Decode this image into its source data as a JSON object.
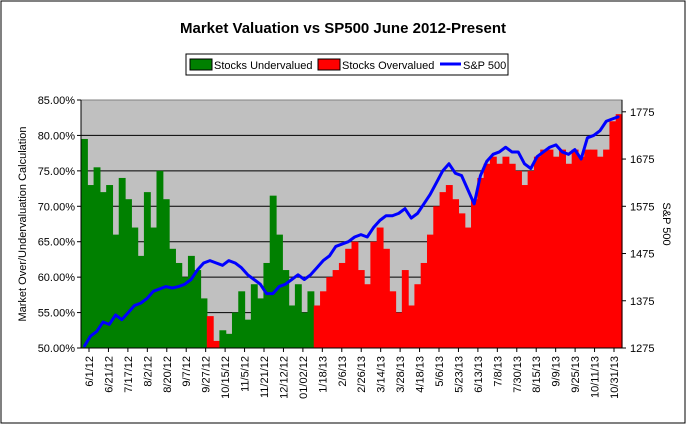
{
  "chart_data": {
    "type": "bar+line",
    "title": "Market Valuation vs SP500 June 2012-Present",
    "ylabel_left": "Market Over/Undervaluation Calculation",
    "ylabel_right": "S&P 500",
    "legend": {
      "placement": "top-center",
      "items": [
        {
          "label": "Stocks Undervalued",
          "color": "#008000",
          "kind": "box"
        },
        {
          "label": "Stocks Overvalued",
          "color": "#ff0000",
          "kind": "box"
        },
        {
          "label": "S&P 500",
          "color": "#0000ff",
          "kind": "line"
        }
      ]
    },
    "left_axis": {
      "min": 50,
      "max": 85,
      "ticks": [
        "50.00%",
        "55.00%",
        "60.00%",
        "65.00%",
        "70.00%",
        "75.00%",
        "80.00%",
        "85.00%"
      ]
    },
    "right_axis": {
      "min": 1275,
      "max": 1800,
      "ticks": [
        "1275",
        "1375",
        "1475",
        "1575",
        "1675",
        "1775"
      ]
    },
    "x_tick_labels": [
      "6/1/12",
      "6/21/12",
      "7/17/12",
      "8/2/12",
      "8/20/12",
      "9/7/12",
      "9/27/12",
      "10/15/12",
      "11/5/12",
      "11/21/12",
      "12/12/12",
      "01/02/12",
      "1/18/13",
      "2/6/13",
      "2/26/13",
      "3/14/13",
      "3/28/13",
      "4/18/13",
      "5/6/13",
      "5/23/13",
      "6/13/13",
      "7/8/13",
      "7/30/13",
      "8/15/13",
      "9/9/13",
      "9/25/13",
      "10/11/13",
      "10/31/13"
    ],
    "plot_background": "#c0c0c0",
    "undervalued_color": "#008000",
    "overvalued_color": "#ff0000",
    "sp500_color": "#0000ff",
    "bars": [
      {
        "segment": 0,
        "status": "undervalued",
        "value": 79.5
      },
      {
        "segment": 0.5,
        "status": "undervalued",
        "value": 73
      },
      {
        "segment": 1,
        "status": "undervalued",
        "value": 75.5
      },
      {
        "segment": 1.5,
        "status": "undervalued",
        "value": 72
      },
      {
        "segment": 2,
        "status": "undervalued",
        "value": 73
      },
      {
        "segment": 2.5,
        "status": "undervalued",
        "value": 66
      },
      {
        "segment": 3,
        "status": "undervalued",
        "value": 74
      },
      {
        "segment": 3.5,
        "status": "undervalued",
        "value": 71
      },
      {
        "segment": 4,
        "status": "undervalued",
        "value": 67
      },
      {
        "segment": 4.5,
        "status": "undervalued",
        "value": 63
      },
      {
        "segment": 5,
        "status": "undervalued",
        "value": 72
      },
      {
        "segment": 5.5,
        "status": "undervalued",
        "value": 67
      },
      {
        "segment": 6,
        "status": "undervalued",
        "value": 75
      },
      {
        "segment": 6.5,
        "status": "undervalued",
        "value": 71
      },
      {
        "segment": 7,
        "status": "undervalued",
        "value": 64
      },
      {
        "segment": 7.5,
        "status": "undervalued",
        "value": 62
      },
      {
        "segment": 8,
        "status": "undervalued",
        "value": 60
      },
      {
        "segment": 8.5,
        "status": "undervalued",
        "value": 63
      },
      {
        "segment": 9,
        "status": "undervalued",
        "value": 61
      },
      {
        "segment": 9.5,
        "status": "undervalued",
        "value": 57
      },
      {
        "segment": 10,
        "status": "overvalued",
        "value": 54.5
      },
      {
        "segment": 10.5,
        "status": "overvalued",
        "value": 51
      },
      {
        "segment": 11,
        "status": "undervalued",
        "value": 52.5
      },
      {
        "segment": 11.5,
        "status": "undervalued",
        "value": 52
      },
      {
        "segment": 12,
        "status": "undervalued",
        "value": 55
      },
      {
        "segment": 12.5,
        "status": "undervalued",
        "value": 58
      },
      {
        "segment": 13,
        "status": "undervalued",
        "value": 54
      },
      {
        "segment": 13.5,
        "status": "undervalued",
        "value": 59
      },
      {
        "segment": 14,
        "status": "undervalued",
        "value": 57
      },
      {
        "segment": 14.5,
        "status": "undervalued",
        "value": 62
      },
      {
        "segment": 15,
        "status": "undervalued",
        "value": 71.5
      },
      {
        "segment": 15.5,
        "status": "undervalued",
        "value": 66
      },
      {
        "segment": 16,
        "status": "undervalued",
        "value": 61
      },
      {
        "segment": 16.5,
        "status": "undervalued",
        "value": 56
      },
      {
        "segment": 17,
        "status": "undervalued",
        "value": 59
      },
      {
        "segment": 17.5,
        "status": "undervalued",
        "value": 55
      },
      {
        "segment": 18,
        "status": "undervalued",
        "value": 58
      },
      {
        "segment": 18.5,
        "status": "overvalued",
        "value": 56
      },
      {
        "segment": 19,
        "status": "overvalued",
        "value": 58
      },
      {
        "segment": 19.5,
        "status": "overvalued",
        "value": 60
      },
      {
        "segment": 20,
        "status": "overvalued",
        "value": 61
      },
      {
        "segment": 20.5,
        "status": "overvalued",
        "value": 62
      },
      {
        "segment": 21,
        "status": "overvalued",
        "value": 64
      },
      {
        "segment": 21.5,
        "status": "overvalued",
        "value": 65
      },
      {
        "segment": 22,
        "status": "overvalued",
        "value": 61
      },
      {
        "segment": 22.5,
        "status": "overvalued",
        "value": 59
      },
      {
        "segment": 23,
        "status": "overvalued",
        "value": 65
      },
      {
        "segment": 23.5,
        "status": "overvalued",
        "value": 67
      },
      {
        "segment": 24,
        "status": "overvalued",
        "value": 64
      },
      {
        "segment": 24.5,
        "status": "overvalued",
        "value": 58
      },
      {
        "segment": 25,
        "status": "overvalued",
        "value": 55
      },
      {
        "segment": 25.5,
        "status": "overvalued",
        "value": 61
      },
      {
        "segment": 26,
        "status": "overvalued",
        "value": 56
      },
      {
        "segment": 26.5,
        "status": "overvalued",
        "value": 59
      },
      {
        "segment": 27,
        "status": "overvalued",
        "value": 62
      },
      {
        "segment": 27.5,
        "status": "overvalued",
        "value": 66
      },
      {
        "segment": 28,
        "status": "overvalued",
        "value": 70
      },
      {
        "segment": 28.5,
        "status": "overvalued",
        "value": 72
      },
      {
        "segment": 29,
        "status": "overvalued",
        "value": 73
      },
      {
        "segment": 29.5,
        "status": "overvalued",
        "value": 71
      },
      {
        "segment": 30,
        "status": "overvalued",
        "value": 69
      },
      {
        "segment": 30.5,
        "status": "overvalued",
        "value": 67
      },
      {
        "segment": 31,
        "status": "overvalued",
        "value": 71
      },
      {
        "segment": 31.5,
        "status": "overvalued",
        "value": 74
      },
      {
        "segment": 32,
        "status": "overvalued",
        "value": 76
      },
      {
        "segment": 32.5,
        "status": "overvalued",
        "value": 77
      },
      {
        "segment": 33,
        "status": "overvalued",
        "value": 76
      },
      {
        "segment": 33.5,
        "status": "overvalued",
        "value": 77
      },
      {
        "segment": 34,
        "status": "overvalued",
        "value": 76
      },
      {
        "segment": 34.5,
        "status": "overvalued",
        "value": 75
      },
      {
        "segment": 35,
        "status": "overvalued",
        "value": 73
      },
      {
        "segment": 35.5,
        "status": "overvalued",
        "value": 75
      },
      {
        "segment": 36,
        "status": "overvalued",
        "value": 77
      },
      {
        "segment": 36.5,
        "status": "overvalued",
        "value": 78
      },
      {
        "segment": 37,
        "status": "overvalued",
        "value": 78
      },
      {
        "segment": 37.5,
        "status": "overvalued",
        "value": 77
      },
      {
        "segment": 38,
        "status": "overvalued",
        "value": 78
      },
      {
        "segment": 38.5,
        "status": "overvalued",
        "value": 76
      },
      {
        "segment": 39,
        "status": "overvalued",
        "value": 78
      },
      {
        "segment": 39.5,
        "status": "overvalued",
        "value": 77
      },
      {
        "segment": 40,
        "status": "overvalued",
        "value": 78
      },
      {
        "segment": 40.5,
        "status": "overvalued",
        "value": 78
      },
      {
        "segment": 41,
        "status": "overvalued",
        "value": 77
      },
      {
        "segment": 41.5,
        "status": "overvalued",
        "value": 78
      },
      {
        "segment": 42,
        "status": "overvalued",
        "value": 82
      },
      {
        "segment": 42.5,
        "status": "overvalued",
        "value": 83
      }
    ],
    "sp500": [
      {
        "segment": 0,
        "value": 1278
      },
      {
        "segment": 0.5,
        "value": 1300
      },
      {
        "segment": 1,
        "value": 1310
      },
      {
        "segment": 1.5,
        "value": 1330
      },
      {
        "segment": 2,
        "value": 1325
      },
      {
        "segment": 2.5,
        "value": 1345
      },
      {
        "segment": 3,
        "value": 1335
      },
      {
        "segment": 3.5,
        "value": 1350
      },
      {
        "segment": 4,
        "value": 1365
      },
      {
        "segment": 4.5,
        "value": 1370
      },
      {
        "segment": 5,
        "value": 1380
      },
      {
        "segment": 5.5,
        "value": 1395
      },
      {
        "segment": 6,
        "value": 1400
      },
      {
        "segment": 6.5,
        "value": 1405
      },
      {
        "segment": 7,
        "value": 1402
      },
      {
        "segment": 7.5,
        "value": 1405
      },
      {
        "segment": 8,
        "value": 1410
      },
      {
        "segment": 8.5,
        "value": 1420
      },
      {
        "segment": 9,
        "value": 1440
      },
      {
        "segment": 9.5,
        "value": 1455
      },
      {
        "segment": 10,
        "value": 1460
      },
      {
        "segment": 10.5,
        "value": 1455
      },
      {
        "segment": 11,
        "value": 1450
      },
      {
        "segment": 11.5,
        "value": 1460
      },
      {
        "segment": 12,
        "value": 1455
      },
      {
        "segment": 12.5,
        "value": 1445
      },
      {
        "segment": 13,
        "value": 1430
      },
      {
        "segment": 13.5,
        "value": 1420
      },
      {
        "segment": 14,
        "value": 1410
      },
      {
        "segment": 14.5,
        "value": 1390
      },
      {
        "segment": 15,
        "value": 1390
      },
      {
        "segment": 15.5,
        "value": 1405
      },
      {
        "segment": 16,
        "value": 1410
      },
      {
        "segment": 16.5,
        "value": 1420
      },
      {
        "segment": 17,
        "value": 1430
      },
      {
        "segment": 17.5,
        "value": 1420
      },
      {
        "segment": 18,
        "value": 1430
      },
      {
        "segment": 18.5,
        "value": 1445
      },
      {
        "segment": 19,
        "value": 1460
      },
      {
        "segment": 19.5,
        "value": 1470
      },
      {
        "segment": 20,
        "value": 1490
      },
      {
        "segment": 20.5,
        "value": 1495
      },
      {
        "segment": 21,
        "value": 1500
      },
      {
        "segment": 21.5,
        "value": 1510
      },
      {
        "segment": 22,
        "value": 1515
      },
      {
        "segment": 22.5,
        "value": 1510
      },
      {
        "segment": 23,
        "value": 1530
      },
      {
        "segment": 23.5,
        "value": 1545
      },
      {
        "segment": 24,
        "value": 1555
      },
      {
        "segment": 24.5,
        "value": 1555
      },
      {
        "segment": 25,
        "value": 1560
      },
      {
        "segment": 25.5,
        "value": 1570
      },
      {
        "segment": 26,
        "value": 1550
      },
      {
        "segment": 26.5,
        "value": 1560
      },
      {
        "segment": 27,
        "value": 1580
      },
      {
        "segment": 27.5,
        "value": 1600
      },
      {
        "segment": 28,
        "value": 1625
      },
      {
        "segment": 28.5,
        "value": 1650
      },
      {
        "segment": 29,
        "value": 1665
      },
      {
        "segment": 29.5,
        "value": 1645
      },
      {
        "segment": 30,
        "value": 1640
      },
      {
        "segment": 30.5,
        "value": 1610
      },
      {
        "segment": 31,
        "value": 1580
      },
      {
        "segment": 31.5,
        "value": 1640
      },
      {
        "segment": 32,
        "value": 1670
      },
      {
        "segment": 32.5,
        "value": 1685
      },
      {
        "segment": 33,
        "value": 1690
      },
      {
        "segment": 33.5,
        "value": 1700
      },
      {
        "segment": 34,
        "value": 1690
      },
      {
        "segment": 34.5,
        "value": 1690
      },
      {
        "segment": 35,
        "value": 1665
      },
      {
        "segment": 35.5,
        "value": 1655
      },
      {
        "segment": 36,
        "value": 1680
      },
      {
        "segment": 36.5,
        "value": 1690
      },
      {
        "segment": 37,
        "value": 1700
      },
      {
        "segment": 37.5,
        "value": 1705
      },
      {
        "segment": 38,
        "value": 1690
      },
      {
        "segment": 38.5,
        "value": 1685
      },
      {
        "segment": 39,
        "value": 1695
      },
      {
        "segment": 39.5,
        "value": 1675
      },
      {
        "segment": 40,
        "value": 1720
      },
      {
        "segment": 40.5,
        "value": 1725
      },
      {
        "segment": 41,
        "value": 1735
      },
      {
        "segment": 41.5,
        "value": 1755
      },
      {
        "segment": 42,
        "value": 1760
      },
      {
        "segment": 42.5,
        "value": 1765
      }
    ]
  }
}
